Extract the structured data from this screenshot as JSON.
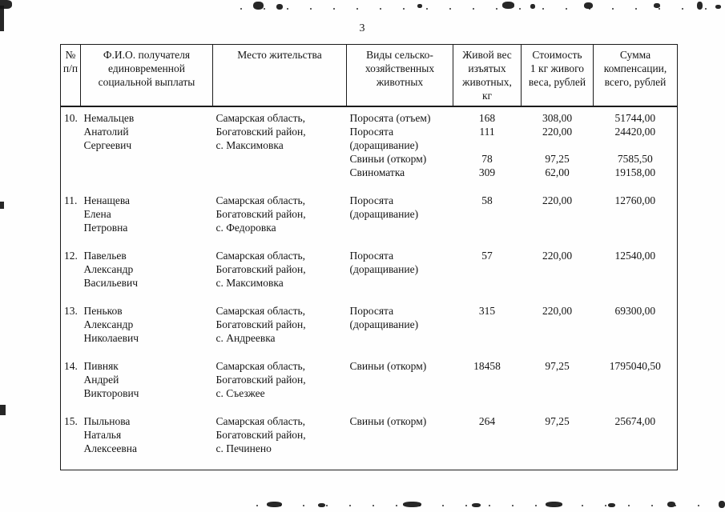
{
  "page": {
    "number": "3"
  },
  "table": {
    "headers": [
      "№\nп/п",
      "Ф.И.О. получателя\nединовременной\nсоциальной выплаты",
      "Место жительства",
      "Виды сельско-\nхозяйственных\nживотных",
      "Живой вес\nизъятых\nживотных,\nкг",
      "Стоимость\n1 кг живого\nвеса, рублей",
      "Сумма\nкомпенсации,\nвсего, рублей"
    ],
    "rows": [
      {
        "num": "10.",
        "name": "Немальцев\nАнатолий\nСергеевич",
        "address": "Самарская область,\nБогатовский район,\nс. Максимовка",
        "animals": [
          {
            "type": "Поросята (отъем)",
            "weight": "168",
            "price": "308,00",
            "sum": "51744,00"
          },
          {
            "type": "Поросята\n(доращивание)",
            "weight": "111",
            "price": "220,00",
            "sum": "24420,00"
          },
          {
            "type": "Свиньи (откорм)",
            "weight": "78",
            "price": "97,25",
            "sum": "7585,50"
          },
          {
            "type": "Свиноматка",
            "weight": "309",
            "price": "62,00",
            "sum": "19158,00"
          }
        ]
      },
      {
        "num": "11.",
        "name": "Ненащева\nЕлена\nПетровна",
        "address": "Самарская область,\nБогатовский район,\nс. Федоровка",
        "animals": [
          {
            "type": "Поросята\n(доращивание)",
            "weight": "58",
            "price": "220,00",
            "sum": "12760,00"
          }
        ]
      },
      {
        "num": "12.",
        "name": "Павельев\nАлександр\nВасильевич",
        "address": "Самарская область,\nБогатовский район,\nс. Максимовка",
        "animals": [
          {
            "type": "Поросята\n(доращивание)",
            "weight": "57",
            "price": "220,00",
            "sum": "12540,00"
          }
        ]
      },
      {
        "num": "13.",
        "name": "Пеньков\nАлександр\nНиколаевич",
        "address": "Самарская область,\nБогатовский район,\nс. Андреевка",
        "animals": [
          {
            "type": "Поросята\n(доращивание)",
            "weight": "315",
            "price": "220,00",
            "sum": "69300,00"
          }
        ]
      },
      {
        "num": "14.",
        "name": "Пивняк\nАндрей\nВикторович",
        "address": "Самарская область,\nБогатовский район,\nс. Съезжее",
        "animals": [
          {
            "type": "Свиньи (откорм)",
            "weight": "18458",
            "price": "97,25",
            "sum": "1795040,50"
          }
        ]
      },
      {
        "num": "15.",
        "name": "Пыльнова\nНаталья\nАлексеевна",
        "address": "Самарская область,\nБогатовский район,\nс. Печинено",
        "animals": [
          {
            "type": "Свиньи (откорм)",
            "weight": "264",
            "price": "97,25",
            "sum": "25674,00"
          }
        ]
      }
    ]
  }
}
